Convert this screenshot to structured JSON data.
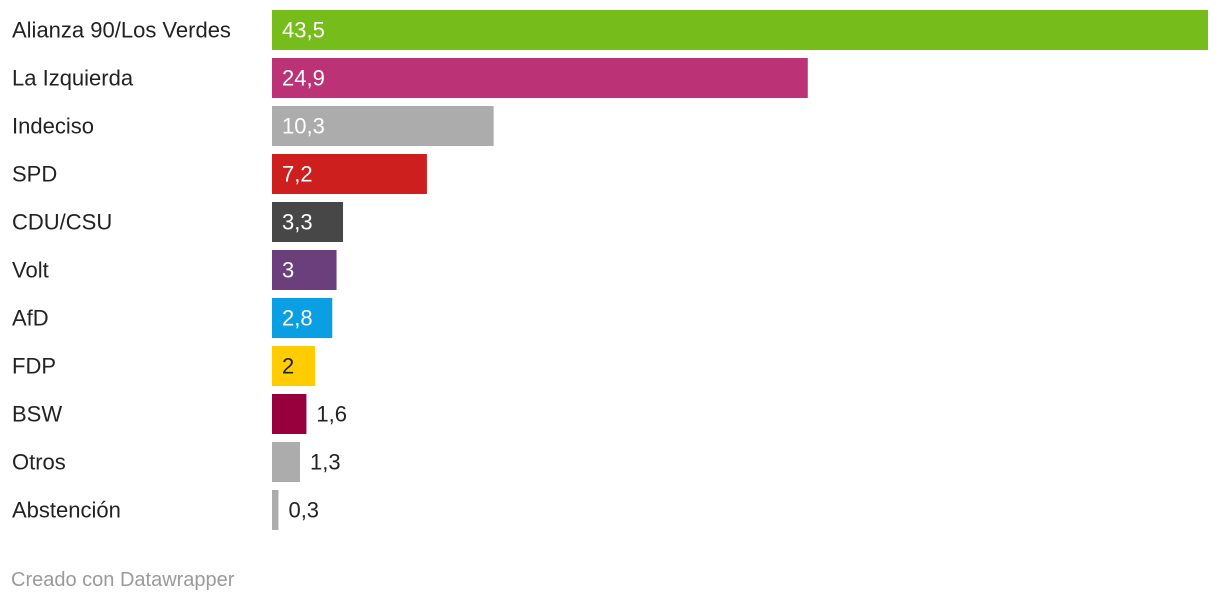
{
  "chart_data": {
    "type": "bar",
    "orientation": "horizontal",
    "categories": [
      "Alianza 90/Los Verdes",
      "La Izquierda",
      "Indeciso",
      "SPD",
      "CDU/CSU",
      "Volt",
      "AfD",
      "FDP",
      "BSW",
      "Otros",
      "Abstención"
    ],
    "values": [
      43.5,
      24.9,
      10.3,
      7.2,
      3.3,
      3,
      2.8,
      2,
      1.6,
      1.3,
      0.3
    ],
    "value_labels": [
      "43,5",
      "24,9",
      "10,3",
      "7,2",
      "3,3",
      "3",
      "2,8",
      "2",
      "1,6",
      "1,3",
      "0,3"
    ],
    "colors": [
      "#76bc1b",
      "#bb3276",
      "#acacac",
      "#cd1f1d",
      "#474747",
      "#6a3f7c",
      "#0a9fe3",
      "#ffcc00",
      "#97003c",
      "#acacac",
      "#acacac"
    ],
    "value_label_colors": [
      "#ffffff",
      "#ffffff",
      "#ffffff",
      "#ffffff",
      "#ffffff",
      "#ffffff",
      "#ffffff",
      "#222222",
      "#222222",
      "#222222",
      "#222222"
    ],
    "value_label_inside": [
      true,
      true,
      true,
      true,
      true,
      true,
      true,
      true,
      false,
      false,
      false
    ],
    "xlim": [
      0,
      43.5
    ],
    "title": "",
    "xlabel": "",
    "ylabel": "",
    "grid": false,
    "legend": false
  },
  "footer": {
    "credit": "Creado con Datawrapper"
  }
}
